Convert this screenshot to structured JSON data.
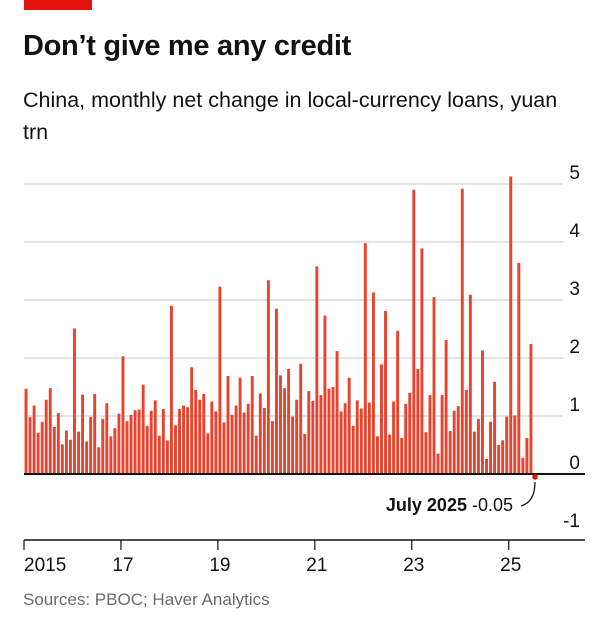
{
  "header": {
    "title": "Don’t give me any credit",
    "subtitle": "China, monthly net change in local-currency loans, yuan trn"
  },
  "footer": {
    "source": "Sources: PBOC; Haver Analytics"
  },
  "annotation": {
    "date": "July 2025",
    "value": "-0.05"
  },
  "colors": {
    "bar": "#e8432e",
    "accent": "#e3120b",
    "grid": "#c8c8c8",
    "axis": "#121212"
  },
  "chart_data": {
    "type": "bar",
    "title": "Don’t give me any credit",
    "subtitle": "China, monthly net change in local-currency loans, yuan trn",
    "ylim": [
      -1,
      5
    ],
    "y_ticks": [
      -1,
      0,
      1,
      2,
      3,
      4,
      5
    ],
    "x_ticks": [
      "2015",
      "17",
      "19",
      "21",
      "23",
      "25"
    ],
    "grid": true,
    "start": "2015-01",
    "end": "2025-07",
    "values": [
      1.47,
      0.98,
      1.18,
      0.71,
      0.9,
      1.28,
      1.48,
      0.81,
      1.05,
      0.51,
      0.75,
      0.59,
      2.51,
      0.73,
      1.37,
      0.56,
      0.98,
      1.38,
      0.46,
      0.95,
      1.22,
      0.65,
      0.79,
      1.04,
      2.03,
      0.91,
      1.02,
      1.1,
      1.11,
      1.54,
      0.83,
      1.09,
      1.27,
      0.66,
      1.12,
      0.58,
      2.9,
      0.84,
      1.12,
      1.18,
      1.15,
      1.84,
      1.45,
      1.28,
      1.38,
      0.7,
      1.25,
      1.08,
      3.23,
      0.89,
      1.69,
      1.02,
      1.18,
      1.66,
      1.06,
      1.21,
      1.69,
      0.66,
      1.39,
      1.14,
      3.34,
      0.91,
      2.85,
      1.7,
      1.48,
      1.81,
      0.99,
      1.28,
      1.9,
      0.69,
      1.43,
      1.26,
      3.58,
      1.36,
      2.73,
      1.47,
      1.5,
      2.12,
      1.08,
      1.22,
      1.66,
      0.83,
      1.27,
      1.13,
      3.98,
      1.23,
      3.13,
      0.65,
      1.89,
      2.81,
      0.68,
      1.25,
      2.47,
      0.62,
      1.21,
      1.4,
      4.9,
      1.81,
      3.89,
      0.72,
      1.36,
      3.05,
      0.35,
      1.36,
      2.31,
      0.74,
      1.09,
      1.17,
      4.92,
      1.45,
      3.09,
      0.73,
      0.95,
      2.13,
      0.26,
      0.9,
      1.59,
      0.5,
      0.58,
      0.99,
      5.13,
      1.01,
      3.64,
      0.28,
      0.62,
      2.24,
      -0.05
    ]
  }
}
